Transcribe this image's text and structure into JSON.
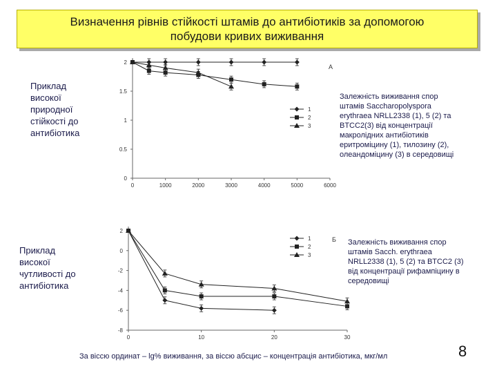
{
  "title": {
    "line1": "Визначення рівнів стійкості штамів до антибіотиків за допомогою",
    "line2": "побудови кривих виживання"
  },
  "notes": {
    "a": [
      "Приклад",
      "високої",
      "природної",
      "стійкості до",
      "антибіотика"
    ],
    "b": [
      "Приклад",
      "високої",
      "чутливості до",
      "антибіотика"
    ]
  },
  "captions": {
    "a": [
      "Залежність виживання спор",
      "штамів Saccharopolyspora",
      "erythraea NRLL2338 (1), 5 (2) та",
      "BTCC2(3) від концентрації",
      "макролідних антибіотиків",
      "еритроміцину (1), тилозину (2),",
      "олеандоміцину  (3) в середовищі"
    ],
    "b": [
      "Залежність виживання спор",
      "штамів Sacch. erythraea",
      "NRLL2338 (1), 5 (2) та BTCC2 (3)",
      "від концентрації  рифампіцину  в",
      "середовищі"
    ]
  },
  "footer": "За віссю ординат – lg% виживання, за віссю абсцис – концентрація антибіотика, мкг/мл",
  "page_number": "8",
  "colors": {
    "title_bg": "#ffff66",
    "ink": "#1a1a4a",
    "line": "#222222"
  },
  "chart_data": [
    {
      "type": "line",
      "panel_label": "А",
      "x": [
        0,
        500,
        1000,
        2000,
        3000,
        4000,
        5000
      ],
      "xticks": [
        "0",
        "1000",
        "2000",
        "3000",
        "4000",
        "5000",
        "6000"
      ],
      "yticks": [
        "0",
        "0.5",
        "1",
        "1.5",
        "2"
      ],
      "xlim": [
        0,
        6000
      ],
      "ylim": [
        0,
        2
      ],
      "grid": false,
      "legend_position": "right",
      "series": [
        {
          "name": "1",
          "marker": "diamond",
          "x": [
            0,
            500,
            1000,
            2000,
            3000,
            4000,
            5000
          ],
          "values": [
            2.0,
            2.0,
            2.0,
            2.0,
            2.0,
            2.0,
            2.0
          ]
        },
        {
          "name": "2",
          "marker": "square",
          "x": [
            0,
            500,
            1000,
            2000,
            3000,
            4000,
            5000
          ],
          "values": [
            2.0,
            1.85,
            1.82,
            1.78,
            1.7,
            1.62,
            1.58
          ]
        },
        {
          "name": "3",
          "marker": "triangle",
          "x": [
            0,
            500,
            1000,
            2000,
            3000
          ],
          "values": [
            2.0,
            1.95,
            1.9,
            1.82,
            1.58
          ]
        }
      ]
    },
    {
      "type": "line",
      "panel_label": "Б",
      "xticks": [
        "0",
        "10",
        "20",
        "30"
      ],
      "yticks": [
        "-8",
        "-6",
        "-4",
        "-2",
        "0",
        "2"
      ],
      "xlim": [
        0,
        30
      ],
      "ylim": [
        -8,
        2
      ],
      "grid": false,
      "legend_position": "top-right",
      "series": [
        {
          "name": "1",
          "marker": "diamond",
          "x": [
            0,
            5,
            10,
            20
          ],
          "values": [
            2.0,
            -5.0,
            -5.8,
            -6.0
          ]
        },
        {
          "name": "2",
          "marker": "square",
          "x": [
            0,
            5,
            10,
            20,
            30
          ],
          "values": [
            2.0,
            -4.0,
            -4.6,
            -4.6,
            -5.6
          ]
        },
        {
          "name": "3",
          "marker": "triangle",
          "x": [
            0,
            5,
            10,
            20,
            30
          ],
          "values": [
            2.0,
            -2.3,
            -3.4,
            -3.8,
            -5.1
          ]
        }
      ]
    }
  ]
}
